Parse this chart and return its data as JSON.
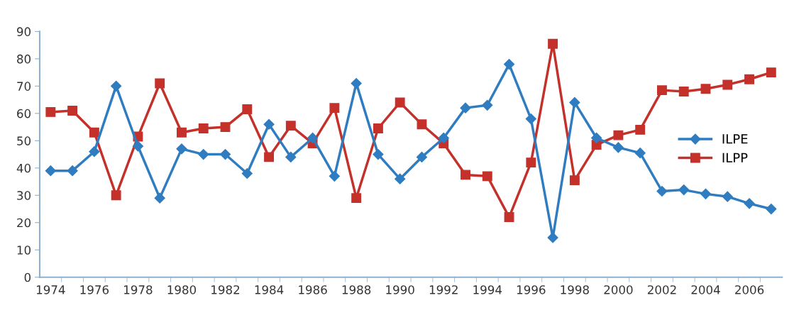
{
  "chart_data": {
    "type": "line",
    "categories": [
      "1974",
      null,
      "1976",
      null,
      "1978",
      null,
      "1980",
      null,
      "1982",
      null,
      "1984",
      null,
      "1986",
      null,
      "1988",
      null,
      "1990",
      null,
      "1992",
      null,
      "1994",
      null,
      "1996",
      null,
      "1998",
      null,
      "2000",
      null,
      "2002",
      null,
      "2004",
      null,
      "2006",
      null
    ],
    "series": [
      {
        "name": "ILPE",
        "color": "#2f7dc0",
        "marker": "diamond",
        "values": [
          39,
          39,
          46,
          70,
          48,
          29,
          47,
          45,
          45,
          38,
          56,
          44,
          51,
          37,
          71,
          45,
          36,
          44,
          51,
          62,
          63,
          78,
          58,
          14.5,
          64,
          51,
          47.5,
          45.5,
          31.5,
          32,
          30.5,
          29.5,
          27,
          25
        ]
      },
      {
        "name": "ILPP",
        "color": "#c4312b",
        "marker": "square",
        "values": [
          60.5,
          61,
          53,
          30,
          51.5,
          71,
          53,
          54.5,
          55,
          61.5,
          44,
          55.5,
          49,
          62,
          29,
          54.5,
          64,
          56,
          49,
          37.5,
          37,
          22,
          42,
          85.5,
          35.5,
          48.5,
          52,
          54,
          68.5,
          68,
          69,
          70.5,
          72.5,
          75
        ]
      }
    ],
    "ylim": [
      0,
      90
    ],
    "yticks": [
      0,
      10,
      20,
      30,
      40,
      50,
      60,
      70,
      80,
      90
    ],
    "grid": false,
    "legend": "right",
    "line_style": "solid"
  }
}
